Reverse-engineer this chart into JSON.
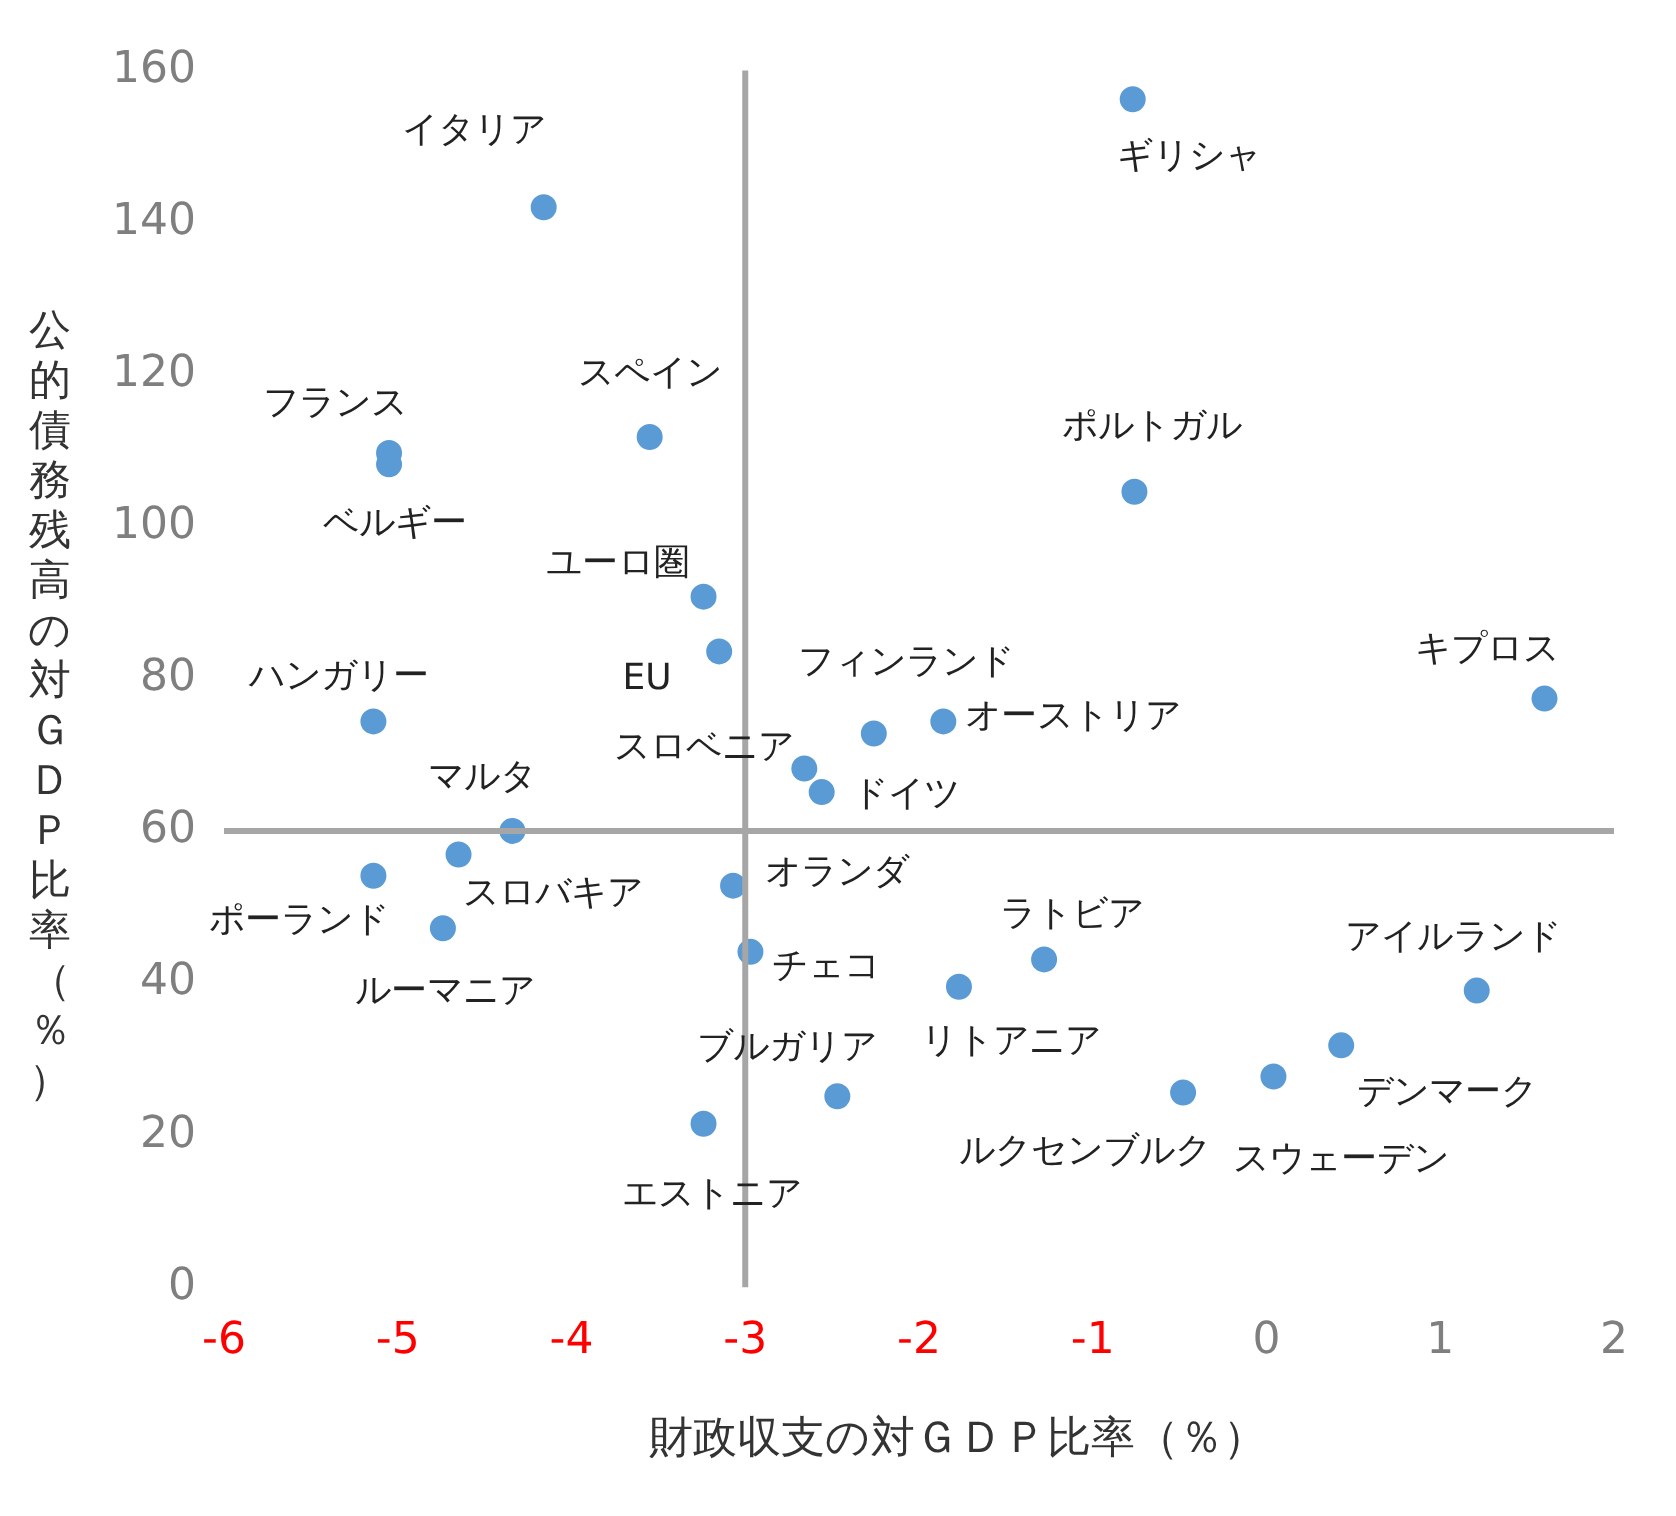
{
  "chart_data": {
    "type": "scatter",
    "xlabel": "財政収支の対ＧＤＰ比率（％）",
    "ylabel": "公的債務残高の対ＧＤＰ比率（％）",
    "xlim": [
      -6,
      2
    ],
    "xticks": [
      -6,
      -5,
      -4,
      -3,
      -2,
      -1,
      0,
      1,
      2
    ],
    "ylim": [
      0,
      160
    ],
    "yticks": [
      0,
      20,
      40,
      60,
      80,
      100,
      120,
      140,
      160
    ],
    "grid": false,
    "legend": false,
    "marker": "circle",
    "series": [
      {
        "color": "#5b9bd5",
        "x": [
          -0.77,
          -4.16,
          -3.55,
          -5.05,
          -5.05,
          -0.76,
          -3.24,
          -3.15,
          1.6,
          -5.14,
          -1.86,
          -2.26,
          -2.66,
          -2.56,
          -4.34,
          -5.14,
          -4.65,
          -3.07,
          -4.74,
          -2.97,
          -1.28,
          -1.77,
          1.21,
          0.43,
          0.04,
          -0.48,
          -2.47,
          -3.24
        ],
        "values": [
          156.2,
          142,
          111.8,
          109.7,
          108.2,
          104.6,
          90.8,
          83.6,
          77.4,
          74.4,
          74.4,
          72.8,
          68.2,
          65.1,
          60,
          54.1,
          56.9,
          52.8,
          47.2,
          44.1,
          43.1,
          39.5,
          39,
          31.8,
          27.7,
          25.6,
          25.1,
          21.5
        ]
      }
    ],
    "ref_lines": [
      {
        "axis": "x",
        "value": -3,
        "color": "#a6a6a6"
      },
      {
        "axis": "y",
        "value": 60,
        "color": "#a6a6a6"
      }
    ],
    "annotations": [
      {
        "text": "ギリシャ",
        "x": -0.77,
        "y": 156.2
      },
      {
        "text": "イタリア",
        "x": -4.16,
        "y": 142
      },
      {
        "text": "スペイン",
        "x": -3.55,
        "y": 111.8
      },
      {
        "text": "フランス",
        "x": -5.05,
        "y": 109.7
      },
      {
        "text": "ベルギー",
        "x": -5.05,
        "y": 108.2
      },
      {
        "text": "ポルトガル",
        "x": -0.76,
        "y": 104.6
      },
      {
        "text": "ユーロ圏",
        "x": -3.24,
        "y": 90.8
      },
      {
        "text": "EU",
        "x": -3.15,
        "y": 83.6
      },
      {
        "text": "キプロス",
        "x": 1.6,
        "y": 77.4
      },
      {
        "text": "ハンガリー",
        "x": -5.14,
        "y": 74.4
      },
      {
        "text": "オーストリア",
        "x": -1.86,
        "y": 74.4
      },
      {
        "text": "フィンランド",
        "x": -2.26,
        "y": 72.8
      },
      {
        "text": "スロベニア",
        "x": -2.66,
        "y": 68.2
      },
      {
        "text": "ドイツ",
        "x": -2.56,
        "y": 65.1
      },
      {
        "text": "マルタ",
        "x": -4.34,
        "y": 60
      },
      {
        "text": "ポーランド",
        "x": -5.14,
        "y": 54.1
      },
      {
        "text": "スロバキア",
        "x": -4.65,
        "y": 56.9
      },
      {
        "text": "オランダ",
        "x": -3.07,
        "y": 52.8
      },
      {
        "text": "ルーマニア",
        "x": -4.74,
        "y": 47.2
      },
      {
        "text": "チェコ",
        "x": -2.97,
        "y": 44.1
      },
      {
        "text": "ラトビア",
        "x": -1.28,
        "y": 43.1
      },
      {
        "text": "リトアニア",
        "x": -1.77,
        "y": 39.5
      },
      {
        "text": "アイルランド",
        "x": 1.21,
        "y": 39
      },
      {
        "text": "デンマーク",
        "x": 0.43,
        "y": 31.8
      },
      {
        "text": "スウェーデン",
        "x": 0.04,
        "y": 27.7
      },
      {
        "text": "ルクセンブルク",
        "x": -0.48,
        "y": 25.6
      },
      {
        "text": "ブルガリア",
        "x": -2.47,
        "y": 25.1
      },
      {
        "text": "エストニア",
        "x": -3.24,
        "y": 21.5
      }
    ]
  }
}
